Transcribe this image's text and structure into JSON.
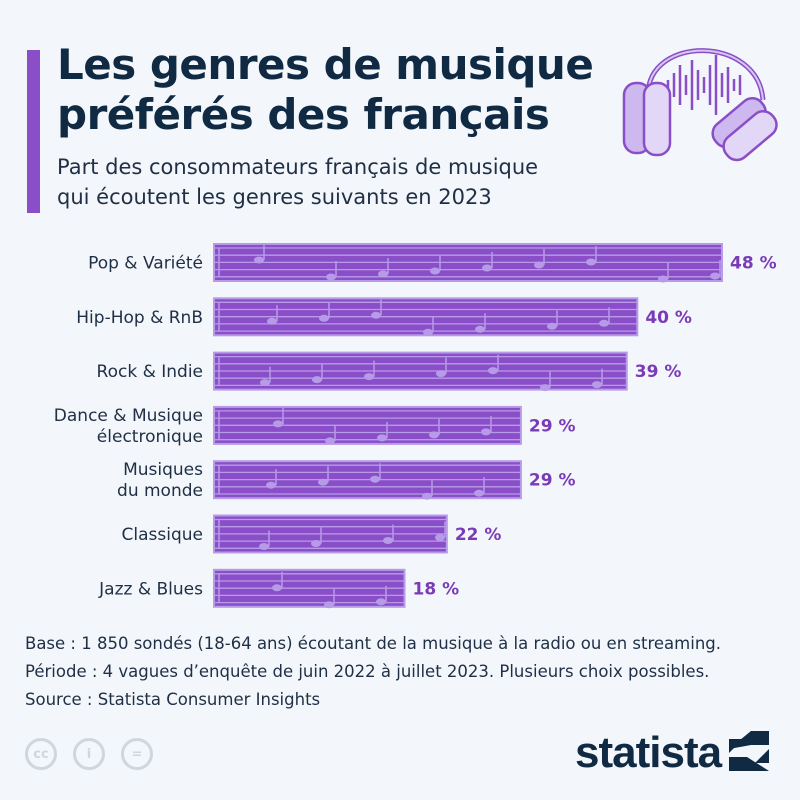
{
  "header": {
    "title_line1": "Les genres de musique",
    "title_line2": "préférés des français",
    "subtitle_line1": "Part des consommateurs français de musique",
    "subtitle_line2": "qui écoutent les genres suivants en 2023"
  },
  "chart_data": {
    "type": "bar",
    "orientation": "horizontal",
    "categories": [
      [
        "Pop & Variété"
      ],
      [
        "Hip-Hop & RnB"
      ],
      [
        "Rock & Indie"
      ],
      [
        "Dance & Musique",
        "électronique"
      ],
      [
        "Musiques",
        "du monde"
      ],
      [
        "Classique"
      ],
      [
        "Jazz & Blues"
      ]
    ],
    "values": [
      48,
      40,
      39,
      29,
      29,
      22,
      18
    ],
    "labels": [
      "48 %",
      "40 %",
      "39 %",
      "29 %",
      "29 %",
      "22 %",
      "18 %"
    ],
    "unit": "%",
    "xlim": [
      0,
      48
    ],
    "grid": false,
    "colors": {
      "bar": "#8a4fc8",
      "staff": "#b79be8",
      "label": "#7a3bb8"
    }
  },
  "footer": {
    "base": "Base : 1 850 sondés (18-64 ans) écoutant de la musique à la radio ou en streaming.",
    "period": "Période : 4 vagues d’enquête de juin 2022 à juillet 2023. Plusieurs choix possibles.",
    "source": "Source : Statista Consumer Insights",
    "license_icons": [
      "cc-icon",
      "by-icon",
      "nd-icon"
    ],
    "logo": "statista"
  }
}
